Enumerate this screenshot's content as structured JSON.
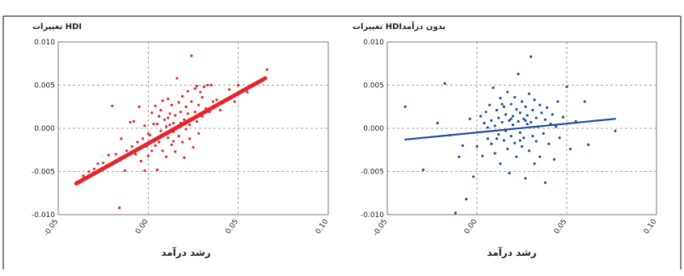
{
  "chart_data": [
    {
      "type": "scatter",
      "title": "",
      "ylabel": "تغییرات HDI",
      "xlabel": "رشد درآمد",
      "xlim": [
        -0.05,
        0.1
      ],
      "ylim": [
        -0.01,
        0.01
      ],
      "x_ticks": [
        "-0.05",
        "0.00",
        "0.05",
        "0.10"
      ],
      "y_ticks": [
        "0.010",
        "0.005",
        "0.000",
        "-0.005",
        "-0.010"
      ],
      "grid": true,
      "color": "#e8232a",
      "trend_line": {
        "x": [
          -0.04,
          0.065
        ],
        "y": [
          -0.0064,
          0.0058
        ]
      },
      "points": [
        [
          -0.04,
          -0.0063
        ],
        [
          -0.036,
          -0.0055
        ],
        [
          -0.033,
          -0.005
        ],
        [
          -0.03,
          -0.0047
        ],
        [
          -0.028,
          -0.0041
        ],
        [
          -0.025,
          -0.004
        ],
        [
          -0.022,
          -0.0031
        ],
        [
          -0.02,
          0.0026
        ],
        [
          -0.018,
          -0.003
        ],
        [
          -0.016,
          -0.0092
        ],
        [
          -0.015,
          -0.0012
        ],
        [
          -0.013,
          -0.0049
        ],
        [
          -0.012,
          -0.0026
        ],
        [
          -0.01,
          0.0007
        ],
        [
          -0.009,
          -0.0021
        ],
        [
          -0.008,
          0.0008
        ],
        [
          -0.007,
          -0.003
        ],
        [
          -0.006,
          -0.0016
        ],
        [
          -0.005,
          0.0025
        ],
        [
          -0.004,
          -0.0038
        ],
        [
          -0.003,
          -0.0012
        ],
        [
          -0.002,
          -0.0049
        ],
        [
          -0.002,
          0.0003
        ],
        [
          -0.001,
          -0.0021
        ],
        [
          0.0,
          -0.0032
        ],
        [
          0.0,
          -0.0006
        ],
        [
          0.001,
          -0.0008
        ],
        [
          0.002,
          0.0018
        ],
        [
          0.002,
          -0.0026
        ],
        [
          0.003,
          -0.0015
        ],
        [
          0.004,
          0.0026
        ],
        [
          0.004,
          -0.002
        ],
        [
          0.005,
          0.0005
        ],
        [
          0.006,
          -0.0016
        ],
        [
          0.006,
          0.0014
        ],
        [
          0.007,
          -0.0003
        ],
        [
          0.007,
          0.0021
        ],
        [
          0.008,
          -0.0026
        ],
        [
          0.009,
          0.001
        ],
        [
          0.009,
          -0.0008
        ],
        [
          0.01,
          0.0002
        ],
        [
          0.01,
          -0.0033
        ],
        [
          0.011,
          0.0034
        ],
        [
          0.011,
          -0.0011
        ],
        [
          0.012,
          0.0017
        ],
        [
          0.012,
          0.0004
        ],
        [
          0.013,
          -0.0019
        ],
        [
          0.013,
          0.0027
        ],
        [
          0.014,
          0.0006
        ],
        [
          0.014,
          -0.0004
        ],
        [
          0.015,
          0.0015
        ],
        [
          0.015,
          -0.0027
        ],
        [
          0.016,
          0.0058
        ],
        [
          0.016,
          0.0002
        ],
        [
          0.017,
          0.003
        ],
        [
          0.017,
          -0.0009
        ],
        [
          0.018,
          0.0006
        ],
        [
          0.018,
          0.0019
        ],
        [
          0.019,
          -0.0016
        ],
        [
          0.019,
          0.0037
        ],
        [
          0.02,
          0.001
        ],
        [
          0.02,
          -0.0034
        ],
        [
          0.021,
          0.0025
        ],
        [
          0.021,
          -0.0001
        ],
        [
          0.022,
          0.0017
        ],
        [
          0.022,
          0.0043
        ],
        [
          0.023,
          0.0004
        ],
        [
          0.023,
          -0.0012
        ],
        [
          0.024,
          0.0031
        ],
        [
          0.024,
          0.0084
        ],
        [
          0.025,
          0.0011
        ],
        [
          0.025,
          -0.0022
        ],
        [
          0.026,
          0.0046
        ],
        [
          0.026,
          0.0019
        ],
        [
          0.027,
          0.0008
        ],
        [
          0.027,
          0.0049
        ],
        [
          0.028,
          0.0027
        ],
        [
          0.028,
          -0.0006
        ],
        [
          0.029,
          0.0042
        ],
        [
          0.03,
          0.0014
        ],
        [
          0.03,
          0.0036
        ],
        [
          0.031,
          0.0048
        ],
        [
          0.032,
          0.0023
        ],
        [
          0.033,
          0.005
        ],
        [
          0.034,
          0.0019
        ],
        [
          0.035,
          0.005
        ],
        [
          0.036,
          0.0031
        ],
        [
          0.038,
          0.0033
        ],
        [
          0.04,
          0.0021
        ],
        [
          0.045,
          0.0045
        ],
        [
          0.048,
          0.0031
        ],
        [
          0.05,
          0.005
        ],
        [
          0.055,
          0.0042
        ],
        [
          0.06,
          0.0052
        ],
        [
          0.066,
          0.0068
        ],
        [
          0.005,
          -0.0048
        ],
        [
          0.003,
          0.0005
        ],
        [
          0.008,
          0.0032
        ],
        [
          0.011,
          0.0012
        ],
        [
          0.014,
          -0.0015
        ]
      ]
    },
    {
      "type": "scatter",
      "title": "",
      "ylabel": "تغییرات HDIبدون درآمد",
      "xlabel": "رشد درآمد",
      "xlim": [
        -0.05,
        0.1
      ],
      "ylim": [
        -0.01,
        0.01
      ],
      "x_ticks": [
        "-0.05",
        "0.00",
        "0.05",
        "0.10"
      ],
      "y_ticks": [
        "0.010",
        "0.005",
        "0.000",
        "-0.005",
        "-0.010"
      ],
      "grid": true,
      "color": "#1f4e9c",
      "trend_line": {
        "x": [
          -0.04,
          0.077
        ],
        "y": [
          -0.0013,
          0.0011
        ]
      },
      "points": [
        [
          -0.04,
          0.0025
        ],
        [
          -0.03,
          -0.0048
        ],
        [
          -0.022,
          0.0006
        ],
        [
          -0.018,
          0.0052
        ],
        [
          -0.015,
          -0.0008
        ],
        [
          -0.012,
          -0.0098
        ],
        [
          -0.01,
          -0.0033
        ],
        [
          -0.008,
          -0.002
        ],
        [
          -0.006,
          -0.0082
        ],
        [
          -0.004,
          0.0011
        ],
        [
          -0.002,
          -0.0056
        ],
        [
          0.0,
          -0.0021
        ],
        [
          0.002,
          0.0014
        ],
        [
          0.003,
          -0.0032
        ],
        [
          0.004,
          0.0006
        ],
        [
          0.005,
          0.0019
        ],
        [
          0.006,
          -0.0012
        ],
        [
          0.007,
          0.0027
        ],
        [
          0.008,
          0.0009
        ],
        [
          0.008,
          -0.0018
        ],
        [
          0.009,
          0.0047
        ],
        [
          0.01,
          0.0003
        ],
        [
          0.01,
          -0.0029
        ],
        [
          0.011,
          0.0021
        ],
        [
          0.012,
          -0.0007
        ],
        [
          0.012,
          0.0012
        ],
        [
          0.013,
          0.0035
        ],
        [
          0.013,
          -0.0041
        ],
        [
          0.014,
          0.0007
        ],
        [
          0.015,
          -0.0014
        ],
        [
          0.015,
          0.0025
        ],
        [
          0.016,
          -0.0003
        ],
        [
          0.016,
          0.0016
        ],
        [
          0.017,
          0.0042
        ],
        [
          0.017,
          -0.0024
        ],
        [
          0.018,
          0.0009
        ],
        [
          0.018,
          -0.0052
        ],
        [
          0.019,
          0.0028
        ],
        [
          0.019,
          -0.0009
        ],
        [
          0.02,
          0.0014
        ],
        [
          0.02,
          0.0004
        ],
        [
          0.021,
          0.0036
        ],
        [
          0.021,
          -0.0017
        ],
        [
          0.022,
          0.0022
        ],
        [
          0.022,
          -0.0033
        ],
        [
          0.023,
          0.0008
        ],
        [
          0.023,
          0.0063
        ],
        [
          0.024,
          -0.0005
        ],
        [
          0.024,
          0.0018
        ],
        [
          0.025,
          0.0031
        ],
        [
          0.025,
          -0.0021
        ],
        [
          0.026,
          0.0011
        ],
        [
          0.026,
          -0.0011
        ],
        [
          0.027,
          0.0025
        ],
        [
          0.027,
          -0.0058
        ],
        [
          0.028,
          0.0005
        ],
        [
          0.028,
          0.0015
        ],
        [
          0.029,
          0.004
        ],
        [
          0.029,
          -0.0026
        ],
        [
          0.03,
          0.0007
        ],
        [
          0.03,
          0.0083
        ],
        [
          0.031,
          -0.0009
        ],
        [
          0.031,
          0.0021
        ],
        [
          0.032,
          0.0033
        ],
        [
          0.032,
          -0.0041
        ],
        [
          0.033,
          0.0012
        ],
        [
          0.033,
          -0.0015
        ],
        [
          0.034,
          0.0002
        ],
        [
          0.035,
          0.0027
        ],
        [
          0.035,
          -0.0033
        ],
        [
          0.036,
          0.0018
        ],
        [
          0.037,
          -0.0006
        ],
        [
          0.038,
          0.001
        ],
        [
          0.038,
          -0.0063
        ],
        [
          0.039,
          0.0024
        ],
        [
          0.04,
          -0.0018
        ],
        [
          0.041,
          0.0005
        ],
        [
          0.042,
          0.0016
        ],
        [
          0.043,
          -0.0036
        ],
        [
          0.044,
          0.0002
        ],
        [
          0.045,
          0.0031
        ],
        [
          0.046,
          -0.0011
        ],
        [
          0.048,
          0.0013
        ],
        [
          0.05,
          0.0048
        ],
        [
          0.052,
          -0.0024
        ],
        [
          0.055,
          0.0008
        ],
        [
          0.06,
          0.0031
        ],
        [
          0.062,
          -0.0019
        ],
        [
          0.077,
          -0.0003
        ],
        [
          0.006,
          0.0001
        ],
        [
          0.011,
          -0.0012
        ],
        [
          0.014,
          0.0028
        ],
        [
          0.019,
          0.0011
        ],
        [
          0.024,
          -0.0014
        ],
        [
          0.027,
          0.0009
        ]
      ]
    }
  ]
}
